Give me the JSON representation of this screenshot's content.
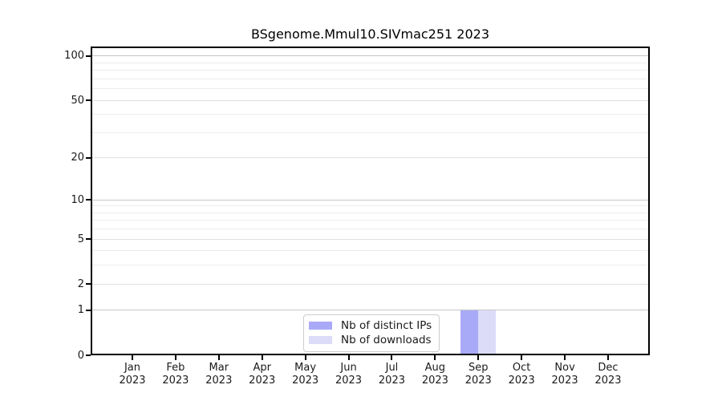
{
  "chart_data": {
    "type": "bar",
    "title": "BSgenome.Mmul10.SIVmac251 2023",
    "categories": [
      "Jan",
      "Feb",
      "Mar",
      "Apr",
      "May",
      "Jun",
      "Jul",
      "Aug",
      "Sep",
      "Oct",
      "Nov",
      "Dec"
    ],
    "x_tick_year": "2023",
    "series": [
      {
        "name": "Nb of distinct IPs",
        "color": "#a9aaf7",
        "values": [
          0,
          0,
          0,
          0,
          0,
          0,
          0,
          0,
          1,
          0,
          0,
          0
        ]
      },
      {
        "name": "Nb of downloads",
        "color": "#dcdcf9",
        "values": [
          0,
          0,
          0,
          0,
          0,
          0,
          0,
          0,
          1,
          0,
          0,
          0
        ]
      }
    ],
    "xlabel": "",
    "ylabel": "",
    "y_scale": "log1p",
    "ylim": [
      0,
      116
    ],
    "y_ticks_labeled": [
      0,
      1,
      2,
      5,
      10,
      20,
      50,
      100
    ],
    "y_ticks_minor": [
      3,
      4,
      6,
      7,
      8,
      9,
      30,
      40,
      60,
      70,
      80,
      90
    ],
    "y_decade_lines": [
      1,
      10,
      100
    ],
    "grid": "horizontal",
    "legend_position": "bottom-center"
  },
  "colors": {
    "bar_distinct_ips": "#a9aaf7",
    "bar_downloads": "#dcdcf9",
    "grid_decade": "#c6c6c6",
    "grid_labeled": "#e0e0e0",
    "grid_minor": "#ececec",
    "axis": "#000000",
    "legend_border": "#cccccc",
    "text": "#1a1a1a",
    "background": "#ffffff"
  }
}
